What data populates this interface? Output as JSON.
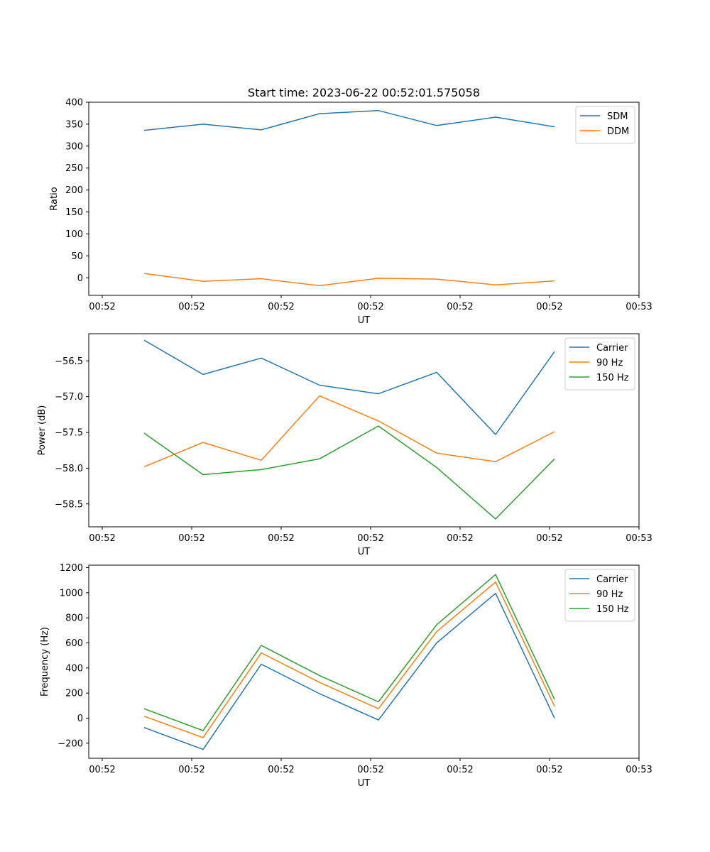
{
  "figure": {
    "title": "Start time: 2023-06-22 00:52:01.575058"
  },
  "chart_data": [
    {
      "type": "line",
      "xlabel": "UT",
      "ylabel": "Ratio",
      "x_tick_labels": [
        "00:52",
        "00:52",
        "00:52",
        "00:52",
        "00:52",
        "00:52",
        "00:53"
      ],
      "y_ticks": [
        0,
        50,
        100,
        150,
        200,
        250,
        300,
        350,
        400
      ],
      "ylim": [
        -40,
        400
      ],
      "legend": "top-right",
      "series": [
        {
          "name": "SDM",
          "color": "#1f77b4",
          "values": [
            336,
            350,
            337,
            374,
            381,
            347,
            366,
            344
          ]
        },
        {
          "name": "DDM",
          "color": "#ff7f0e",
          "values": [
            10,
            -8,
            -2,
            -18,
            -1,
            -3,
            -16,
            -7
          ]
        }
      ]
    },
    {
      "type": "line",
      "xlabel": "UT",
      "ylabel": "Power (dB)",
      "x_tick_labels": [
        "00:52",
        "00:52",
        "00:52",
        "00:52",
        "00:52",
        "00:52",
        "00:53"
      ],
      "y_ticks": [
        -58.5,
        -58.0,
        -57.5,
        -57.0,
        -56.5
      ],
      "y_tick_labels": [
        "−58.5",
        "−58.0",
        "−57.5",
        "−57.0",
        "−56.5"
      ],
      "ylim": [
        -58.82,
        -56.12
      ],
      "legend": "top-right",
      "series": [
        {
          "name": "Carrier",
          "color": "#1f77b4",
          "values": [
            -56.21,
            -56.69,
            -56.46,
            -56.84,
            -56.96,
            -56.66,
            -57.53,
            -56.37
          ]
        },
        {
          "name": "90 Hz",
          "color": "#ff7f0e",
          "values": [
            -57.98,
            -57.64,
            -57.89,
            -56.99,
            -57.34,
            -57.79,
            -57.91,
            -57.49
          ]
        },
        {
          "name": "150 Hz",
          "color": "#2ca02c",
          "values": [
            -57.51,
            -58.09,
            -58.02,
            -57.87,
            -57.41,
            -57.99,
            -58.71,
            -57.87
          ]
        }
      ]
    },
    {
      "type": "line",
      "xlabel": "UT",
      "ylabel": "Frequency (Hz)",
      "x_tick_labels": [
        "00:52",
        "00:52",
        "00:52",
        "00:52",
        "00:52",
        "00:52",
        "00:53"
      ],
      "y_ticks": [
        -200,
        0,
        200,
        400,
        600,
        800,
        1000,
        1200
      ],
      "y_tick_labels": [
        "−200",
        "0",
        "200",
        "400",
        "600",
        "800",
        "1000",
        "1200"
      ],
      "ylim": [
        -320,
        1220
      ],
      "legend": "top-right",
      "series": [
        {
          "name": "Carrier",
          "color": "#1f77b4",
          "values": [
            -75,
            -250,
            430,
            195,
            -15,
            600,
            995,
            0
          ]
        },
        {
          "name": "90 Hz",
          "color": "#ff7f0e",
          "values": [
            15,
            -155,
            520,
            285,
            75,
            690,
            1085,
            95
          ]
        },
        {
          "name": "150 Hz",
          "color": "#2ca02c",
          "values": [
            75,
            -100,
            580,
            340,
            130,
            745,
            1145,
            150
          ]
        }
      ]
    }
  ]
}
